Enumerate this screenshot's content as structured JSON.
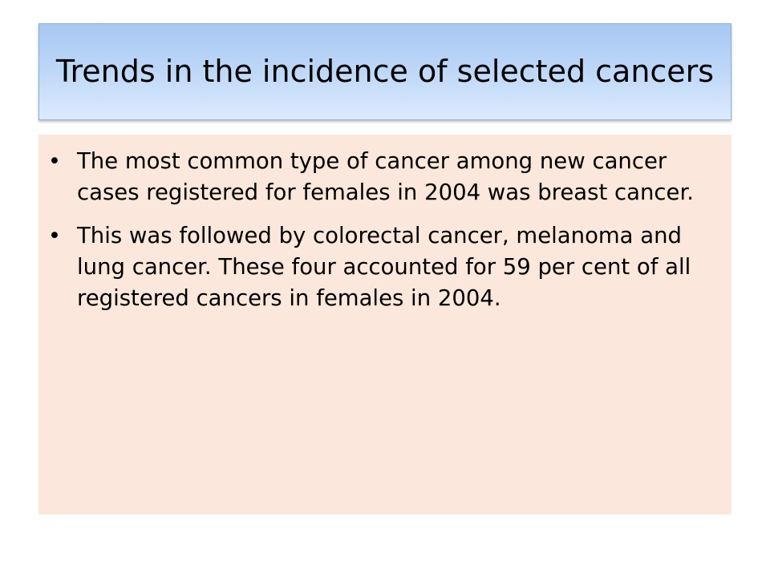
{
  "slide": {
    "title": "Trends in the incidence of selected cancers",
    "bullets": [
      "The most common type of cancer among new cancer cases registered for females in 2004 was breast cancer.",
      "This was followed by colorectal cancer, melanoma and lung cancer. These four accounted for 59 per cent of all registered cancers in females in 2004."
    ],
    "bullet_symbol": "•"
  },
  "colors": {
    "title_gradient_top": "#a7c7f2",
    "title_gradient_bottom": "#dceafd",
    "content_background": "#fbe7db",
    "text": "#000000"
  }
}
